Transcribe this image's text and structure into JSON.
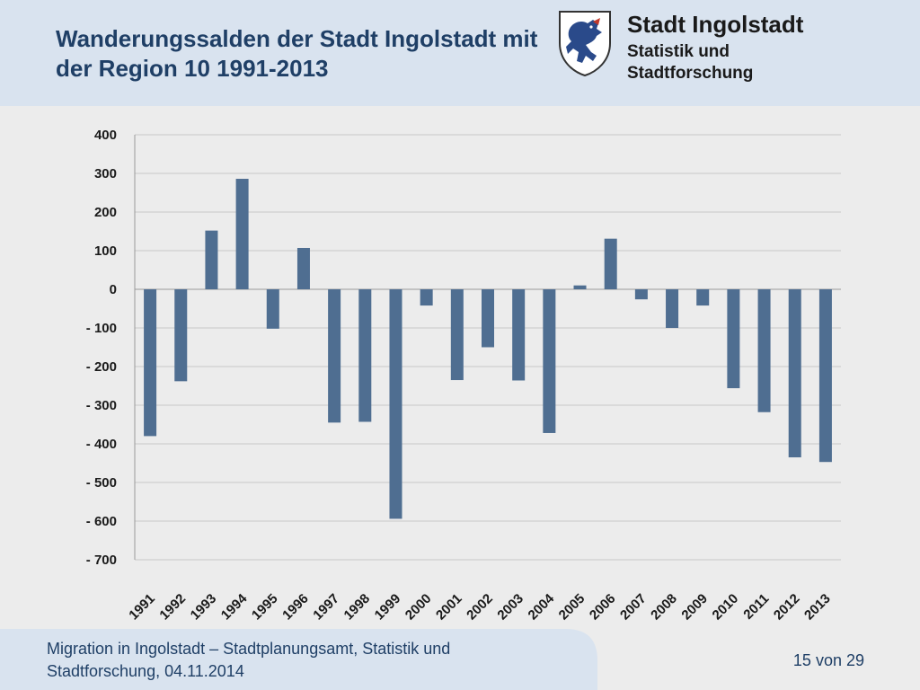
{
  "header": {
    "title": "Wanderungssalden der Stadt Ingolstadt mit der Region 10 1991-2013",
    "org_name": "Stadt Ingolstadt",
    "org_dept": "Statistik und Stadtforschung"
  },
  "footer": {
    "text": "Migration in Ingolstadt – Stadtplanungsamt, Statistik und Stadtforschung, 04.11.2014",
    "page": "15 von 29"
  },
  "colors": {
    "bar": "#4f6e91",
    "header_bg": "#d9e3ef",
    "title": "#1f3f66",
    "grid": "#c8c8c8"
  },
  "chart_data": {
    "type": "bar",
    "categories": [
      "1991",
      "1992",
      "1993",
      "1994",
      "1995",
      "1996",
      "1997",
      "1998",
      "1999",
      "2000",
      "2001",
      "2002",
      "2003",
      "2004",
      "2005",
      "2006",
      "2007",
      "2008",
      "2009",
      "2010",
      "2011",
      "2012",
      "2013"
    ],
    "values": [
      -380,
      -238,
      152,
      286,
      -102,
      107,
      -345,
      -343,
      -594,
      -42,
      -235,
      -150,
      -236,
      -372,
      10,
      131,
      -26,
      -100,
      -42,
      -256,
      -318,
      -435,
      -447
    ],
    "ylim": [
      -700,
      400
    ],
    "yticks": [
      400,
      300,
      200,
      100,
      0,
      -100,
      -200,
      -300,
      -400,
      -500,
      -600,
      -700
    ],
    "ytick_labels": [
      "400",
      "300",
      "200",
      "100",
      "0",
      "- 100",
      "- 200",
      "- 300",
      "- 400",
      "- 500",
      "- 600",
      "- 700"
    ],
    "grid": true,
    "legend": "none"
  }
}
